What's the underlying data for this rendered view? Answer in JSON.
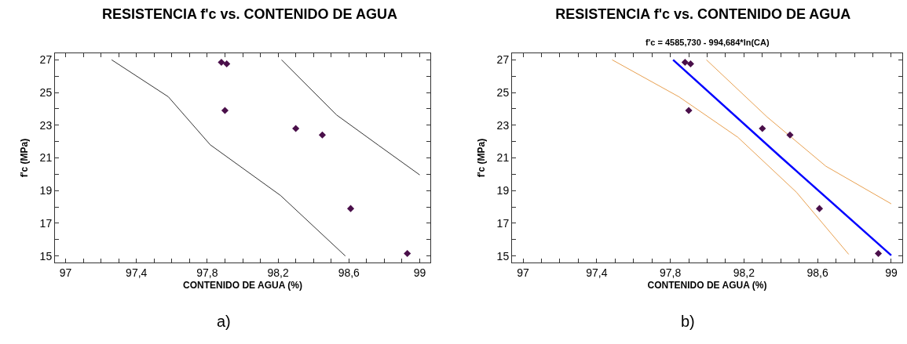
{
  "chart_data": [
    {
      "type": "scatter",
      "title": "RESISTENCIA f'c vs. CONTENIDO DE AGUA",
      "xlabel": "CONTENIDO DE AGUA (%)",
      "ylabel": "f'c (MPa)",
      "annotations": [
        "a)"
      ],
      "grid": false,
      "marker": "diamond",
      "xlim": [
        96.94,
        99.06
      ],
      "ylim": [
        14.6,
        27.4
      ],
      "xticks": [
        {
          "value": 97,
          "label": "97"
        },
        {
          "value": 97.1,
          "label": null
        },
        {
          "value": 97.2,
          "label": null
        },
        {
          "value": 97.3,
          "label": null
        },
        {
          "value": 97.4,
          "label": "97,4"
        },
        {
          "value": 97.5,
          "label": null
        },
        {
          "value": 97.6,
          "label": null
        },
        {
          "value": 97.7,
          "label": null
        },
        {
          "value": 97.8,
          "label": "97,8"
        },
        {
          "value": 97.9,
          "label": null
        },
        {
          "value": 98,
          "label": null
        },
        {
          "value": 98.1,
          "label": null
        },
        {
          "value": 98.2,
          "label": "98,2"
        },
        {
          "value": 98.3,
          "label": null
        },
        {
          "value": 98.4,
          "label": null
        },
        {
          "value": 98.5,
          "label": null
        },
        {
          "value": 98.6,
          "label": "98,6"
        },
        {
          "value": 98.7,
          "label": null
        },
        {
          "value": 98.8,
          "label": null
        },
        {
          "value": 98.9,
          "label": null
        },
        {
          "value": 99,
          "label": "99"
        }
      ],
      "yticks": [
        15,
        {
          "value": 16,
          "label": null
        },
        17,
        {
          "value": 18,
          "label": null
        },
        19,
        {
          "value": 20,
          "label": null
        },
        21,
        {
          "value": 22,
          "label": null
        },
        23,
        {
          "value": 24,
          "label": null
        },
        25,
        {
          "value": 26,
          "label": null
        },
        27
      ],
      "series": [
        {
          "color": "#4a0f4a",
          "x": [
            97.88,
            97.91,
            97.9,
            98.3,
            98.45,
            98.61,
            98.93
          ],
          "values": [
            26.85,
            26.75,
            23.9,
            22.8,
            22.4,
            17.9,
            15.15
          ]
        },
        {
          "type": "line",
          "marker": "none",
          "color": "#333333",
          "x": [
            97.26,
            97.58,
            97.817,
            98.214,
            98.58
          ],
          "values": [
            27,
            24.74,
            21.8,
            18.7,
            15
          ]
        },
        {
          "type": "line",
          "marker": "none",
          "color": "#333333",
          "x": [
            98.22,
            98.53,
            98.77,
            99.0
          ],
          "values": [
            27,
            23.63,
            21.75,
            19.96
          ]
        }
      ]
    },
    {
      "type": "scatter",
      "title": "RESISTENCIA f'c vs. CONTENIDO DE AGUA",
      "subtitle": "f'c = 4585,730 - 994,684*ln(CA)",
      "xlabel": "CONTENIDO DE AGUA (%)",
      "ylabel": "f'c (MPa)",
      "annotations": [
        "b)"
      ],
      "grid": false,
      "marker": "diamond",
      "xlim": [
        96.94,
        99.06
      ],
      "ylim": [
        14.6,
        27.4
      ],
      "xticks": [
        {
          "value": 97,
          "label": "97"
        },
        {
          "value": 97.1,
          "label": null
        },
        {
          "value": 97.2,
          "label": null
        },
        {
          "value": 97.3,
          "label": null
        },
        {
          "value": 97.4,
          "label": "97,4"
        },
        {
          "value": 97.5,
          "label": null
        },
        {
          "value": 97.6,
          "label": null
        },
        {
          "value": 97.7,
          "label": null
        },
        {
          "value": 97.8,
          "label": "97,8"
        },
        {
          "value": 97.9,
          "label": null
        },
        {
          "value": 98,
          "label": null
        },
        {
          "value": 98.1,
          "label": null
        },
        {
          "value": 98.2,
          "label": "98,2"
        },
        {
          "value": 98.3,
          "label": null
        },
        {
          "value": 98.4,
          "label": null
        },
        {
          "value": 98.5,
          "label": null
        },
        {
          "value": 98.6,
          "label": "98,6"
        },
        {
          "value": 98.7,
          "label": null
        },
        {
          "value": 98.8,
          "label": null
        },
        {
          "value": 98.9,
          "label": null
        },
        {
          "value": 99,
          "label": "99"
        }
      ],
      "yticks": [
        15,
        {
          "value": 16,
          "label": null
        },
        17,
        {
          "value": 18,
          "label": null
        },
        19,
        {
          "value": 20,
          "label": null
        },
        21,
        {
          "value": 22,
          "label": null
        },
        23,
        {
          "value": 24,
          "label": null
        },
        25,
        {
          "value": 26,
          "label": null
        },
        27
      ],
      "series": [
        {
          "type": "line",
          "marker": "none",
          "color": "#e8a050",
          "x": [
            97.484,
            97.848,
            98.167,
            98.485,
            98.769
          ],
          "values": [
            27,
            24.73,
            22.26,
            18.9,
            15.1
          ]
        },
        {
          "type": "line",
          "marker": "none",
          "color": "#e8a050",
          "x": [
            97.996,
            98.326,
            98.645,
            99.0
          ],
          "values": [
            27,
            23.5,
            20.49,
            18.19
          ]
        },
        {
          "type": "line",
          "marker": "none",
          "color": "#0000ff",
          "x": [
            97.815,
            98.4,
            99.0
          ],
          "values": [
            27,
            21.05,
            15.04
          ]
        },
        {
          "color": "#4a0f4a",
          "x": [
            97.88,
            97.91,
            97.9,
            98.3,
            98.45,
            98.61,
            98.93
          ],
          "values": [
            26.85,
            26.75,
            23.9,
            22.8,
            22.4,
            17.9,
            15.15
          ]
        }
      ]
    }
  ]
}
